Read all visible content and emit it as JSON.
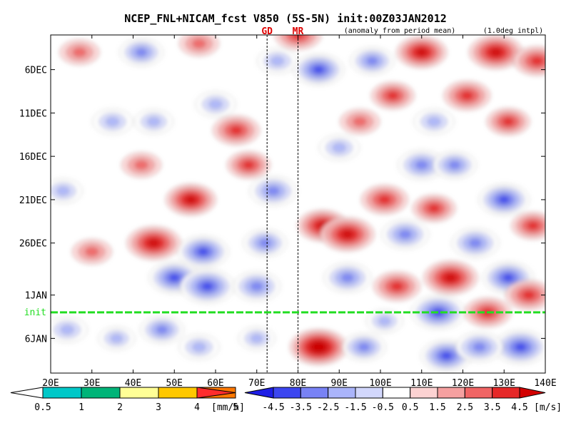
{
  "chart_data": {
    "type": "heatmap",
    "title": "NCEP_FNL+NICAM_fcst V850 (5S-5N) init:00Z03JAN2012",
    "subtitle_left": "(anomaly from period mean)",
    "subtitle_right": "(1.0deg intpl)",
    "x_ticks": [
      "20E",
      "30E",
      "40E",
      "50E",
      "60E",
      "70E",
      "80E",
      "90E",
      "100E",
      "110E",
      "120E",
      "130E",
      "140E"
    ],
    "x_tick_values": [
      20,
      30,
      40,
      50,
      60,
      70,
      80,
      90,
      100,
      110,
      120,
      130,
      140
    ],
    "xlim": [
      20,
      140
    ],
    "y_ticks": [
      "6DEC",
      "11DEC",
      "16DEC",
      "21DEC",
      "26DEC",
      "1JAN",
      "6JAN"
    ],
    "y_tick_values": [
      6,
      11,
      16,
      21,
      26,
      32,
      37
    ],
    "ylim": [
      2,
      41
    ],
    "y_direction": "down",
    "init_label": "init",
    "init_day": 34,
    "init_line_color": "#22dd22",
    "markers": [
      {
        "label": "GD",
        "lon": 72.5,
        "color": "#dd0000"
      },
      {
        "label": "MR",
        "lon": 80,
        "color": "#dd0000"
      }
    ],
    "precip_colorbar": {
      "labels": [
        "0.5",
        "1",
        "2",
        "3",
        "4",
        "5"
      ],
      "unit": "[mm/h]",
      "colors": [
        "#00c8c8",
        "#00b478",
        "#ffff96",
        "#ffc800",
        "#ff7800",
        "#ff2d2d"
      ]
    },
    "wind_colorbar": {
      "labels": [
        "-4.5",
        "-3.5",
        "-2.5",
        "-1.5",
        "-0.5",
        "0.5",
        "1.5",
        "2.5",
        "3.5",
        "4.5"
      ],
      "unit": "[m/s]",
      "colors": [
        "#1e1ee6",
        "#3c46f0",
        "#7882f5",
        "#aab4fa",
        "#d2d7fc",
        "#ffffff",
        "#fcd2d2",
        "#f5a0a0",
        "#f06464",
        "#e62828",
        "#d20000"
      ]
    },
    "anomaly_blobs": [
      {
        "lon": 27,
        "day": 4,
        "v": 2.0
      },
      {
        "lon": 35,
        "day": 12,
        "v": -2.0
      },
      {
        "lon": 23,
        "day": 20,
        "v": -1.8
      },
      {
        "lon": 30,
        "day": 27,
        "v": 2.0
      },
      {
        "lon": 24,
        "day": 36,
        "v": -2.0
      },
      {
        "lon": 36,
        "day": 37,
        "v": -1.5
      },
      {
        "lon": 42,
        "day": 4,
        "v": -2.5
      },
      {
        "lon": 45,
        "day": 12,
        "v": -1.8
      },
      {
        "lon": 42,
        "day": 17,
        "v": 2.0
      },
      {
        "lon": 45,
        "day": 26,
        "v": 4.0
      },
      {
        "lon": 50,
        "day": 30,
        "v": -3.5
      },
      {
        "lon": 47,
        "day": 36,
        "v": -2.5
      },
      {
        "lon": 56,
        "day": 3,
        "v": 2.0
      },
      {
        "lon": 60,
        "day": 10,
        "v": -2.0
      },
      {
        "lon": 65,
        "day": 13,
        "v": 3.0
      },
      {
        "lon": 54,
        "day": 21,
        "v": 3.5
      },
      {
        "lon": 57,
        "day": 27,
        "v": -3.5
      },
      {
        "lon": 58,
        "day": 31,
        "v": -4.0
      },
      {
        "lon": 56,
        "day": 38,
        "v": -2.0
      },
      {
        "lon": 68,
        "day": 17,
        "v": 2.5
      },
      {
        "lon": 74,
        "day": 20,
        "v": -3.0
      },
      {
        "lon": 72,
        "day": 26,
        "v": -2.5
      },
      {
        "lon": 70,
        "day": 31,
        "v": -3.0
      },
      {
        "lon": 75,
        "day": 5,
        "v": -2.0
      },
      {
        "lon": 85,
        "day": 6,
        "v": -3.5
      },
      {
        "lon": 80,
        "day": 2,
        "v": 3.0
      },
      {
        "lon": 86,
        "day": 24,
        "v": 3.5
      },
      {
        "lon": 92,
        "day": 25,
        "v": 4.0
      },
      {
        "lon": 85,
        "day": 38,
        "v": 4.5
      },
      {
        "lon": 92,
        "day": 30,
        "v": -3.0
      },
      {
        "lon": 90,
        "day": 15,
        "v": -2.0
      },
      {
        "lon": 95,
        "day": 12,
        "v": 2.0
      },
      {
        "lon": 101,
        "day": 21,
        "v": 3.0
      },
      {
        "lon": 96,
        "day": 38,
        "v": -2.5
      },
      {
        "lon": 98,
        "day": 5,
        "v": -2.5
      },
      {
        "lon": 103,
        "day": 9,
        "v": 2.5
      },
      {
        "lon": 106,
        "day": 25,
        "v": -3.0
      },
      {
        "lon": 104,
        "day": 31,
        "v": 3.0
      },
      {
        "lon": 110,
        "day": 4,
        "v": 3.5
      },
      {
        "lon": 113,
        "day": 12,
        "v": -2.0
      },
      {
        "lon": 110,
        "day": 17,
        "v": -3.0
      },
      {
        "lon": 113,
        "day": 22,
        "v": 2.5
      },
      {
        "lon": 117,
        "day": 30,
        "v": 4.0
      },
      {
        "lon": 114,
        "day": 34,
        "v": -4.0
      },
      {
        "lon": 116,
        "day": 39,
        "v": -3.5
      },
      {
        "lon": 121,
        "day": 9,
        "v": 3.0
      },
      {
        "lon": 118,
        "day": 17,
        "v": -2.5
      },
      {
        "lon": 123,
        "day": 26,
        "v": -3.0
      },
      {
        "lon": 126,
        "day": 34,
        "v": 3.0
      },
      {
        "lon": 128,
        "day": 4,
        "v": 4.0
      },
      {
        "lon": 131,
        "day": 12,
        "v": 2.5
      },
      {
        "lon": 130,
        "day": 21,
        "v": -3.5
      },
      {
        "lon": 131,
        "day": 30,
        "v": -3.5
      },
      {
        "lon": 137,
        "day": 24,
        "v": 2.5
      },
      {
        "lon": 136,
        "day": 32,
        "v": 3.0
      },
      {
        "lon": 134,
        "day": 38,
        "v": -4.0
      },
      {
        "lon": 138,
        "day": 5,
        "v": 3.0
      },
      {
        "lon": 101,
        "day": 35,
        "v": -1.5
      },
      {
        "lon": 70,
        "day": 37,
        "v": -1.5
      },
      {
        "lon": 124,
        "day": 38,
        "v": -3.0
      }
    ]
  }
}
